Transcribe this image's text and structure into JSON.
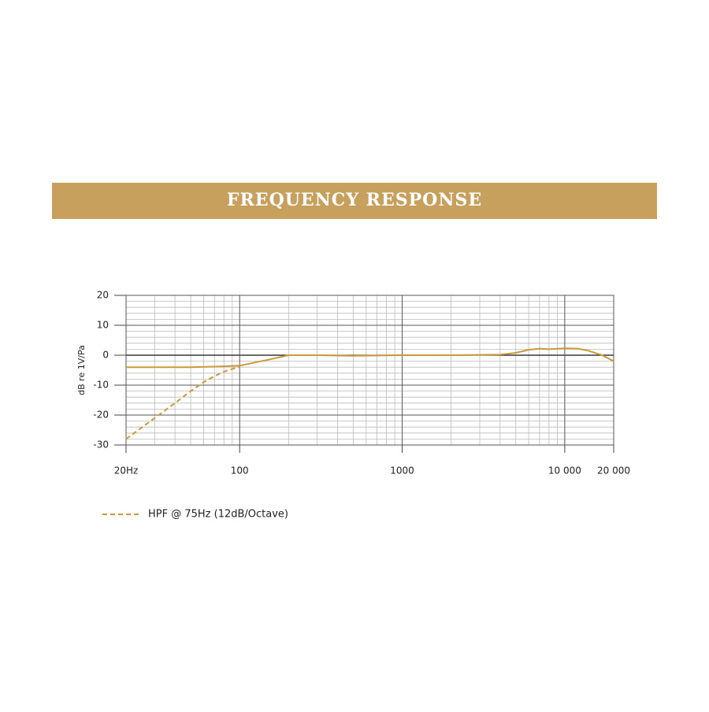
{
  "chart_data": {
    "type": "line",
    "title": "FREQUENCY RESPONSE",
    "y_label": "dB re 1V/Pa",
    "xscale": "log",
    "xlim": [
      20,
      20000
    ],
    "ylim": [
      -30,
      20
    ],
    "xticks": [
      {
        "value": 20,
        "label": "20Hz"
      },
      100,
      1000,
      {
        "value": 10000,
        "label": "10 000"
      },
      {
        "value": 20000,
        "label": "20 000"
      }
    ],
    "yticks": [
      -30,
      -20,
      -10,
      0,
      10,
      20
    ],
    "x_minor_ticks": [
      30,
      40,
      50,
      60,
      70,
      80,
      90,
      200,
      300,
      400,
      500,
      600,
      700,
      800,
      900,
      2000,
      3000,
      4000,
      5000,
      6000,
      7000,
      8000,
      9000
    ],
    "y_minor_ticks": [
      -28,
      -26,
      -24,
      -22,
      -18,
      -16,
      -14,
      -12,
      -8,
      -6,
      -4,
      -2,
      2,
      4,
      6,
      8,
      12,
      14,
      16,
      18
    ],
    "grid": true,
    "series": [
      {
        "color": "#c99a3a",
        "linestyle": "solid",
        "x": [
          20,
          30,
          50,
          70,
          100,
          150,
          200,
          300,
          500,
          1000,
          2000,
          4000,
          5000,
          6000,
          7000,
          8000,
          10000,
          12000,
          14000,
          17000,
          20000
        ],
        "values": [
          -4,
          -4,
          -4,
          -3.8,
          -3.5,
          -1.5,
          0,
          0,
          -0.2,
          0,
          0,
          0.2,
          0.8,
          1.8,
          2.2,
          2,
          2.3,
          2.2,
          1.5,
          0,
          -2
        ]
      },
      {
        "name": "HPF @ 75Hz (12dB/Octave)",
        "color": "#c99a3a",
        "linestyle": "dashed",
        "x": [
          20,
          30,
          40,
          50,
          60,
          70,
          80,
          100
        ],
        "values": [
          -28,
          -21,
          -16,
          -12,
          -9,
          -7,
          -5.5,
          -3.8
        ]
      }
    ]
  }
}
